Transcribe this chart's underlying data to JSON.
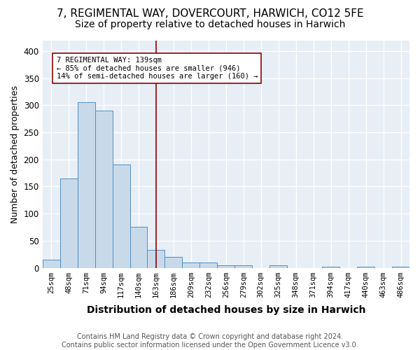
{
  "title": "7, REGIMENTAL WAY, DOVERCOURT, HARWICH, CO12 5FE",
  "subtitle": "Size of property relative to detached houses in Harwich",
  "xlabel": "Distribution of detached houses by size in Harwich",
  "ylabel": "Number of detached properties",
  "bins": [
    "25sqm",
    "48sqm",
    "71sqm",
    "94sqm",
    "117sqm",
    "140sqm",
    "163sqm",
    "186sqm",
    "209sqm",
    "232sqm",
    "256sqm",
    "279sqm",
    "302sqm",
    "325sqm",
    "348sqm",
    "371sqm",
    "394sqm",
    "417sqm",
    "440sqm",
    "463sqm",
    "486sqm"
  ],
  "values": [
    15,
    165,
    305,
    290,
    190,
    75,
    33,
    20,
    10,
    10,
    4,
    5,
    0,
    4,
    0,
    0,
    2,
    0,
    2,
    0,
    2
  ],
  "bar_color": "#c8daea",
  "bar_edge_color": "#4d8fc4",
  "vline_x": 6.0,
  "vline_color": "#8b0000",
  "annotation_text": "7 REGIMENTAL WAY: 139sqm\n← 85% of detached houses are smaller (946)\n14% of semi-detached houses are larger (160) →",
  "annotation_box_color": "white",
  "annotation_box_edge_color": "#8b0000",
  "footer": "Contains HM Land Registry data © Crown copyright and database right 2024.\nContains public sector information licensed under the Open Government Licence v3.0.",
  "ylim": [
    0,
    420
  ],
  "yticks": [
    0,
    50,
    100,
    150,
    200,
    250,
    300,
    350,
    400
  ],
  "title_fontsize": 11,
  "subtitle_fontsize": 10,
  "tick_fontsize": 7.5,
  "ylabel_fontsize": 9,
  "xlabel_fontsize": 10,
  "footer_fontsize": 7,
  "fig_bg_color": "#ffffff",
  "plot_bg_color": "#e8eef5"
}
